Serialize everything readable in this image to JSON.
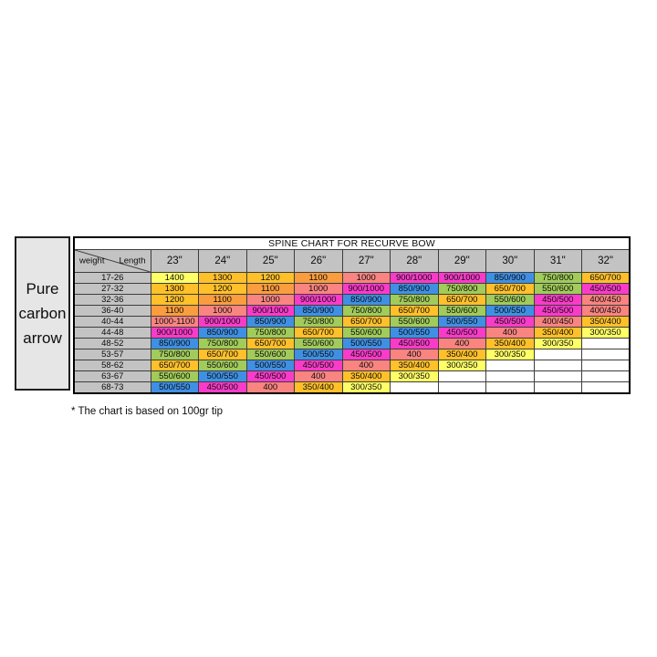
{
  "side_label": {
    "lines": [
      "Pure",
      "carbon",
      "arrow"
    ]
  },
  "footnote": "* The chart is based on 100gr tip",
  "chart_data": {
    "type": "table",
    "title": "SPINE CHART FOR RECURVE BOW",
    "corner_labels": {
      "row_axis": "weight",
      "col_axis": "Length"
    },
    "columns": [
      "23\"",
      "24\"",
      "25\"",
      "26\"",
      "27\"",
      "28\"",
      "29\"",
      "30\"",
      "31\"",
      "32\""
    ],
    "rows": [
      {
        "weight": "17-26",
        "values": [
          "1400",
          "1300",
          "1200",
          "1100",
          "1000",
          "900/1000",
          "900/1000",
          "850/900",
          "750/800",
          "650/700"
        ],
        "colors": [
          "yellow",
          "amber",
          "amber",
          "orange",
          "salmon",
          "magenta",
          "magenta",
          "blue",
          "green",
          "amber"
        ]
      },
      {
        "weight": "27-32",
        "values": [
          "1300",
          "1200",
          "1100",
          "1000",
          "900/1000",
          "850/900",
          "750/800",
          "650/700",
          "550/600",
          "450/500"
        ],
        "colors": [
          "amber",
          "amber",
          "orange",
          "salmon",
          "magenta",
          "blue",
          "green",
          "amber",
          "green",
          "magenta"
        ]
      },
      {
        "weight": "32-36",
        "values": [
          "1200",
          "1100",
          "1000",
          "900/1000",
          "850/900",
          "750/800",
          "650/700",
          "550/600",
          "450/500",
          "400/450"
        ],
        "colors": [
          "amber",
          "orange",
          "salmon",
          "magenta",
          "blue",
          "green",
          "amber",
          "green",
          "magenta",
          "salmon"
        ]
      },
      {
        "weight": "36-40",
        "values": [
          "1100",
          "1000",
          "900/1000",
          "850/900",
          "750/800",
          "650/700",
          "550/600",
          "500/550",
          "450/500",
          "400/450"
        ],
        "colors": [
          "orange",
          "salmon",
          "magenta",
          "blue",
          "green",
          "amber",
          "green",
          "blue",
          "magenta",
          "salmon"
        ]
      },
      {
        "weight": "40-44",
        "values": [
          "1000-1100",
          "900/1000",
          "850/900",
          "750/800",
          "650/700",
          "550/600",
          "500/550",
          "450/500",
          "400/450",
          "350/400"
        ],
        "colors": [
          "salmon",
          "magenta",
          "blue",
          "green",
          "amber",
          "green",
          "blue",
          "magenta",
          "salmon",
          "amber"
        ]
      },
      {
        "weight": "44-48",
        "values": [
          "900/1000",
          "850/900",
          "750/800",
          "650/700",
          "550/600",
          "500/550",
          "450/500",
          "400",
          "350/400",
          "300/350"
        ],
        "colors": [
          "magenta",
          "blue",
          "green",
          "amber",
          "green",
          "blue",
          "magenta",
          "salmon",
          "amber",
          "yellow"
        ]
      },
      {
        "weight": "48-52",
        "values": [
          "850/900",
          "750/800",
          "650/700",
          "550/600",
          "500/550",
          "450/500",
          "400",
          "350/400",
          "300/350",
          ""
        ],
        "colors": [
          "blue",
          "green",
          "amber",
          "green",
          "blue",
          "magenta",
          "salmon",
          "amber",
          "yellow",
          "white"
        ]
      },
      {
        "weight": "53-57",
        "values": [
          "750/800",
          "650/700",
          "550/600",
          "500/550",
          "450/500",
          "400",
          "350/400",
          "300/350",
          "",
          ""
        ],
        "colors": [
          "green",
          "amber",
          "green",
          "blue",
          "magenta",
          "salmon",
          "amber",
          "yellow",
          "white",
          "white"
        ]
      },
      {
        "weight": "58-62",
        "values": [
          "650/700",
          "550/600",
          "500/550",
          "450/500",
          "400",
          "350/400",
          "300/350",
          "",
          "",
          ""
        ],
        "colors": [
          "amber",
          "green",
          "blue",
          "magenta",
          "salmon",
          "amber",
          "yellow",
          "white",
          "white",
          "white"
        ]
      },
      {
        "weight": "63-67",
        "values": [
          "550/600",
          "500/550",
          "450/500",
          "400",
          "350/400",
          "300/350",
          "",
          "",
          "",
          ""
        ],
        "colors": [
          "green",
          "blue",
          "magenta",
          "salmon",
          "amber",
          "yellow",
          "white",
          "white",
          "white",
          "white"
        ]
      },
      {
        "weight": "68-73",
        "values": [
          "500/550",
          "450/500",
          "400",
          "350/400",
          "300/350",
          "",
          "",
          "",
          "",
          ""
        ],
        "colors": [
          "blue",
          "magenta",
          "salmon",
          "amber",
          "yellow",
          "white",
          "white",
          "white",
          "white",
          "white"
        ]
      }
    ],
    "color_legend": {
      "yellow": "#ffff66",
      "amber": "#ffc02a",
      "orange": "#fa9d3e",
      "salmon": "#f98480",
      "magenta": "#fa3bca",
      "blue": "#3f90e4",
      "green": "#a1cb5a",
      "white": "#ffffff"
    },
    "grid": true,
    "header_background": "#c3c3c3"
  }
}
